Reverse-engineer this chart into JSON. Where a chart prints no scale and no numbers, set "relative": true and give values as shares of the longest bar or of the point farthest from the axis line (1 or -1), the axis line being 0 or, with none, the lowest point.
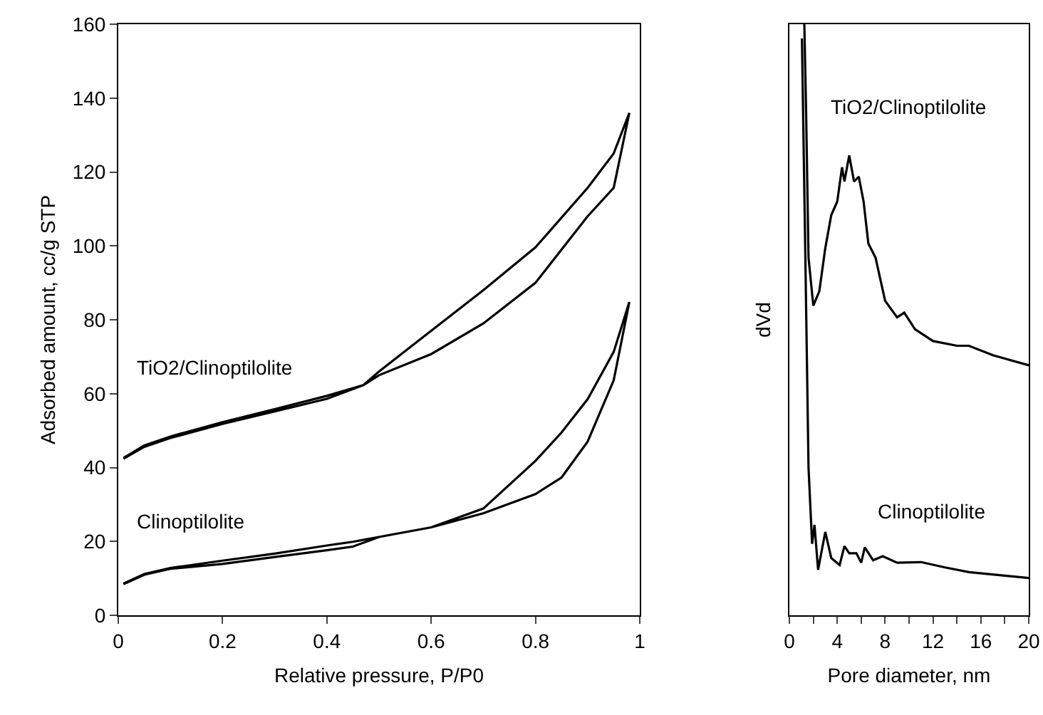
{
  "chart_data": [
    {
      "type": "line",
      "xlabel": "Relative pressure, P/P0",
      "ylabel": "Adsorbed amount, cc/g STP",
      "xlim": [
        0,
        1
      ],
      "xticks": [
        0,
        0.2,
        0.4,
        0.6,
        0.8,
        1
      ],
      "ylim": [
        0,
        160
      ],
      "yticks": [
        0,
        20,
        40,
        60,
        80,
        100,
        120,
        140,
        160
      ],
      "grid": false,
      "marker": "none",
      "line_style": "solid",
      "series": [
        {
          "name": "TiO2/Clinoptilolite",
          "color": "#000000",
          "x": [
            0.01,
            0.05,
            0.1,
            0.2,
            0.3,
            0.4,
            0.47,
            0.5,
            0.6,
            0.7,
            0.8,
            0.9,
            0.95,
            0.98,
            0.95,
            0.9,
            0.8,
            0.7,
            0.6,
            0.5,
            0.47,
            0.4,
            0.3,
            0.2,
            0.1,
            0.05,
            0.01
          ],
          "values": [
            42.4,
            45.6,
            48,
            51.8,
            55.2,
            58.6,
            62.3,
            65,
            70.7,
            79,
            90,
            108,
            115.7,
            136,
            125,
            115.7,
            99.6,
            88,
            77,
            66,
            62.3,
            59.4,
            55.8,
            52.3,
            48.4,
            46,
            42.6
          ]
        },
        {
          "name": "Clinoptilolite",
          "color": "#000000",
          "x": [
            0.01,
            0.05,
            0.1,
            0.2,
            0.3,
            0.4,
            0.45,
            0.5,
            0.6,
            0.7,
            0.8,
            0.85,
            0.9,
            0.95,
            0.98,
            0.95,
            0.9,
            0.85,
            0.8,
            0.7,
            0.6,
            0.5,
            0.45,
            0.4,
            0.3,
            0.2,
            0.1,
            0.05,
            0.01
          ],
          "values": [
            8.4,
            11,
            12.6,
            13.9,
            15.8,
            17.6,
            18.6,
            21.2,
            23.8,
            27.6,
            32.8,
            37.3,
            47,
            63.6,
            84.8,
            71.3,
            58.5,
            49.5,
            41.8,
            28.9,
            23.8,
            21.2,
            19.9,
            18.9,
            16.7,
            14.8,
            12.8,
            11.2,
            8.6
          ]
        }
      ]
    },
    {
      "type": "line",
      "xlabel": "Pore diameter, nm",
      "ylabel": "dVd",
      "relative": true,
      "xlim": [
        0,
        20
      ],
      "xticks": [
        0,
        {
          "value": 2,
          "label": null
        },
        4,
        {
          "value": 6,
          "label": null
        },
        8,
        {
          "value": 10,
          "label": null
        },
        12,
        {
          "value": 14,
          "label": null
        },
        16,
        {
          "value": 18,
          "label": null
        },
        20
      ],
      "grid": false,
      "marker": "none",
      "line_style": "solid",
      "series": [
        {
          "name": "TiO2/Clinoptilolite",
          "color": "#000000",
          "x": [
            1.25,
            1.4,
            1.6,
            2,
            2.5,
            3,
            3.5,
            4,
            4.4,
            4.6,
            5,
            5.4,
            5.8,
            6.2,
            6.6,
            7.2,
            8,
            9,
            9.6,
            10.5,
            12,
            14,
            15,
            17,
            20
          ],
          "values": [
            1,
            0.85,
            0.605,
            0.524,
            0.548,
            0.621,
            0.677,
            0.7,
            0.758,
            0.734,
            0.778,
            0.734,
            0.742,
            0.7,
            0.629,
            0.605,
            0.532,
            0.504,
            0.512,
            0.484,
            0.464,
            0.456,
            0.456,
            0.44,
            0.423
          ]
        },
        {
          "name": "Clinoptilolite",
          "color": "#000000",
          "x": [
            1.05,
            1.3,
            1.6,
            1.9,
            2.1,
            2.4,
            3,
            3.5,
            4.2,
            4.6,
            5,
            5.6,
            6,
            6.3,
            7,
            7.8,
            9,
            11,
            13,
            15,
            20
          ],
          "values": [
            0.976,
            0.653,
            0.25,
            0.121,
            0.153,
            0.077,
            0.141,
            0.097,
            0.085,
            0.117,
            0.105,
            0.105,
            0.089,
            0.115,
            0.093,
            0.1,
            0.089,
            0.09,
            0.081,
            0.073,
            0.063
          ]
        }
      ]
    }
  ]
}
